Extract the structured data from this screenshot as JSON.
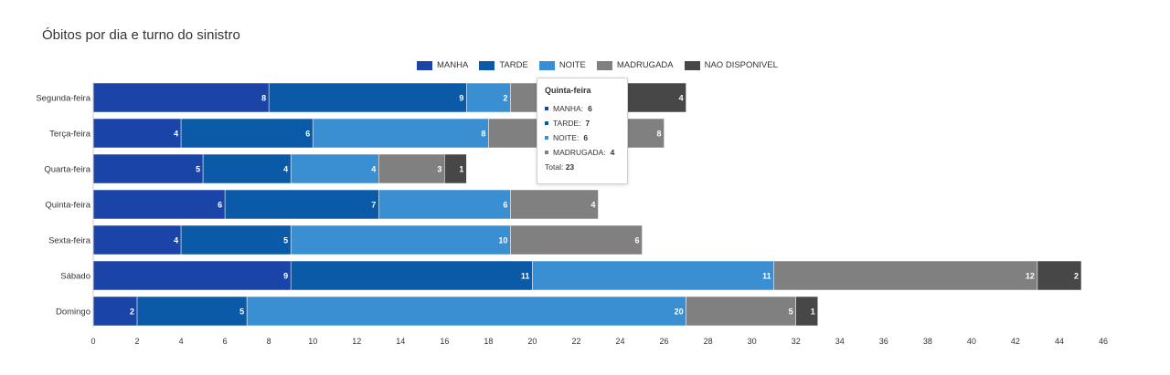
{
  "title": "Óbitos por dia e turno do sinistro",
  "chart_data": {
    "type": "bar",
    "orientation": "horizontal",
    "stacked": true,
    "categories": [
      "Segunda-feira",
      "Terça-feira",
      "Quarta-feira",
      "Quinta-feira",
      "Sexta-feira",
      "Sábado",
      "Domingo"
    ],
    "series": [
      {
        "name": "MANHA",
        "color": "#1b44a8",
        "values": [
          8,
          4,
          5,
          6,
          4,
          9,
          2
        ]
      },
      {
        "name": "TARDE",
        "color": "#0a5aa8",
        "values": [
          9,
          6,
          4,
          7,
          5,
          11,
          5
        ]
      },
      {
        "name": "NOITE",
        "color": "#3a8fd2",
        "values": [
          2,
          8,
          4,
          6,
          10,
          11,
          20
        ]
      },
      {
        "name": "MADRUGADA",
        "color": "#808080",
        "values": [
          4,
          8,
          3,
          4,
          6,
          12,
          5
        ]
      },
      {
        "name": "NAO DISPONIVEL",
        "color": "#474747",
        "values": [
          4,
          0,
          1,
          0,
          0,
          2,
          1
        ]
      }
    ],
    "xlim": [
      0,
      46
    ],
    "xticks": [
      0,
      2,
      4,
      6,
      8,
      10,
      12,
      14,
      16,
      18,
      20,
      22,
      24,
      26,
      28,
      30,
      32,
      34,
      36,
      38,
      40,
      42,
      44,
      46
    ],
    "legend_position": "top-center"
  },
  "tooltip": {
    "title": "Quinta-feira",
    "rows": [
      {
        "label": "MANHA:",
        "value": "6",
        "color": "#1b44a8"
      },
      {
        "label": "TARDE:",
        "value": "7",
        "color": "#0a5aa8"
      },
      {
        "label": "NOITE:",
        "value": "6",
        "color": "#3a8fd2"
      },
      {
        "label": "MADRUGADA:",
        "value": "4",
        "color": "#808080"
      }
    ],
    "total_label": "Total:",
    "total_value": "23"
  }
}
